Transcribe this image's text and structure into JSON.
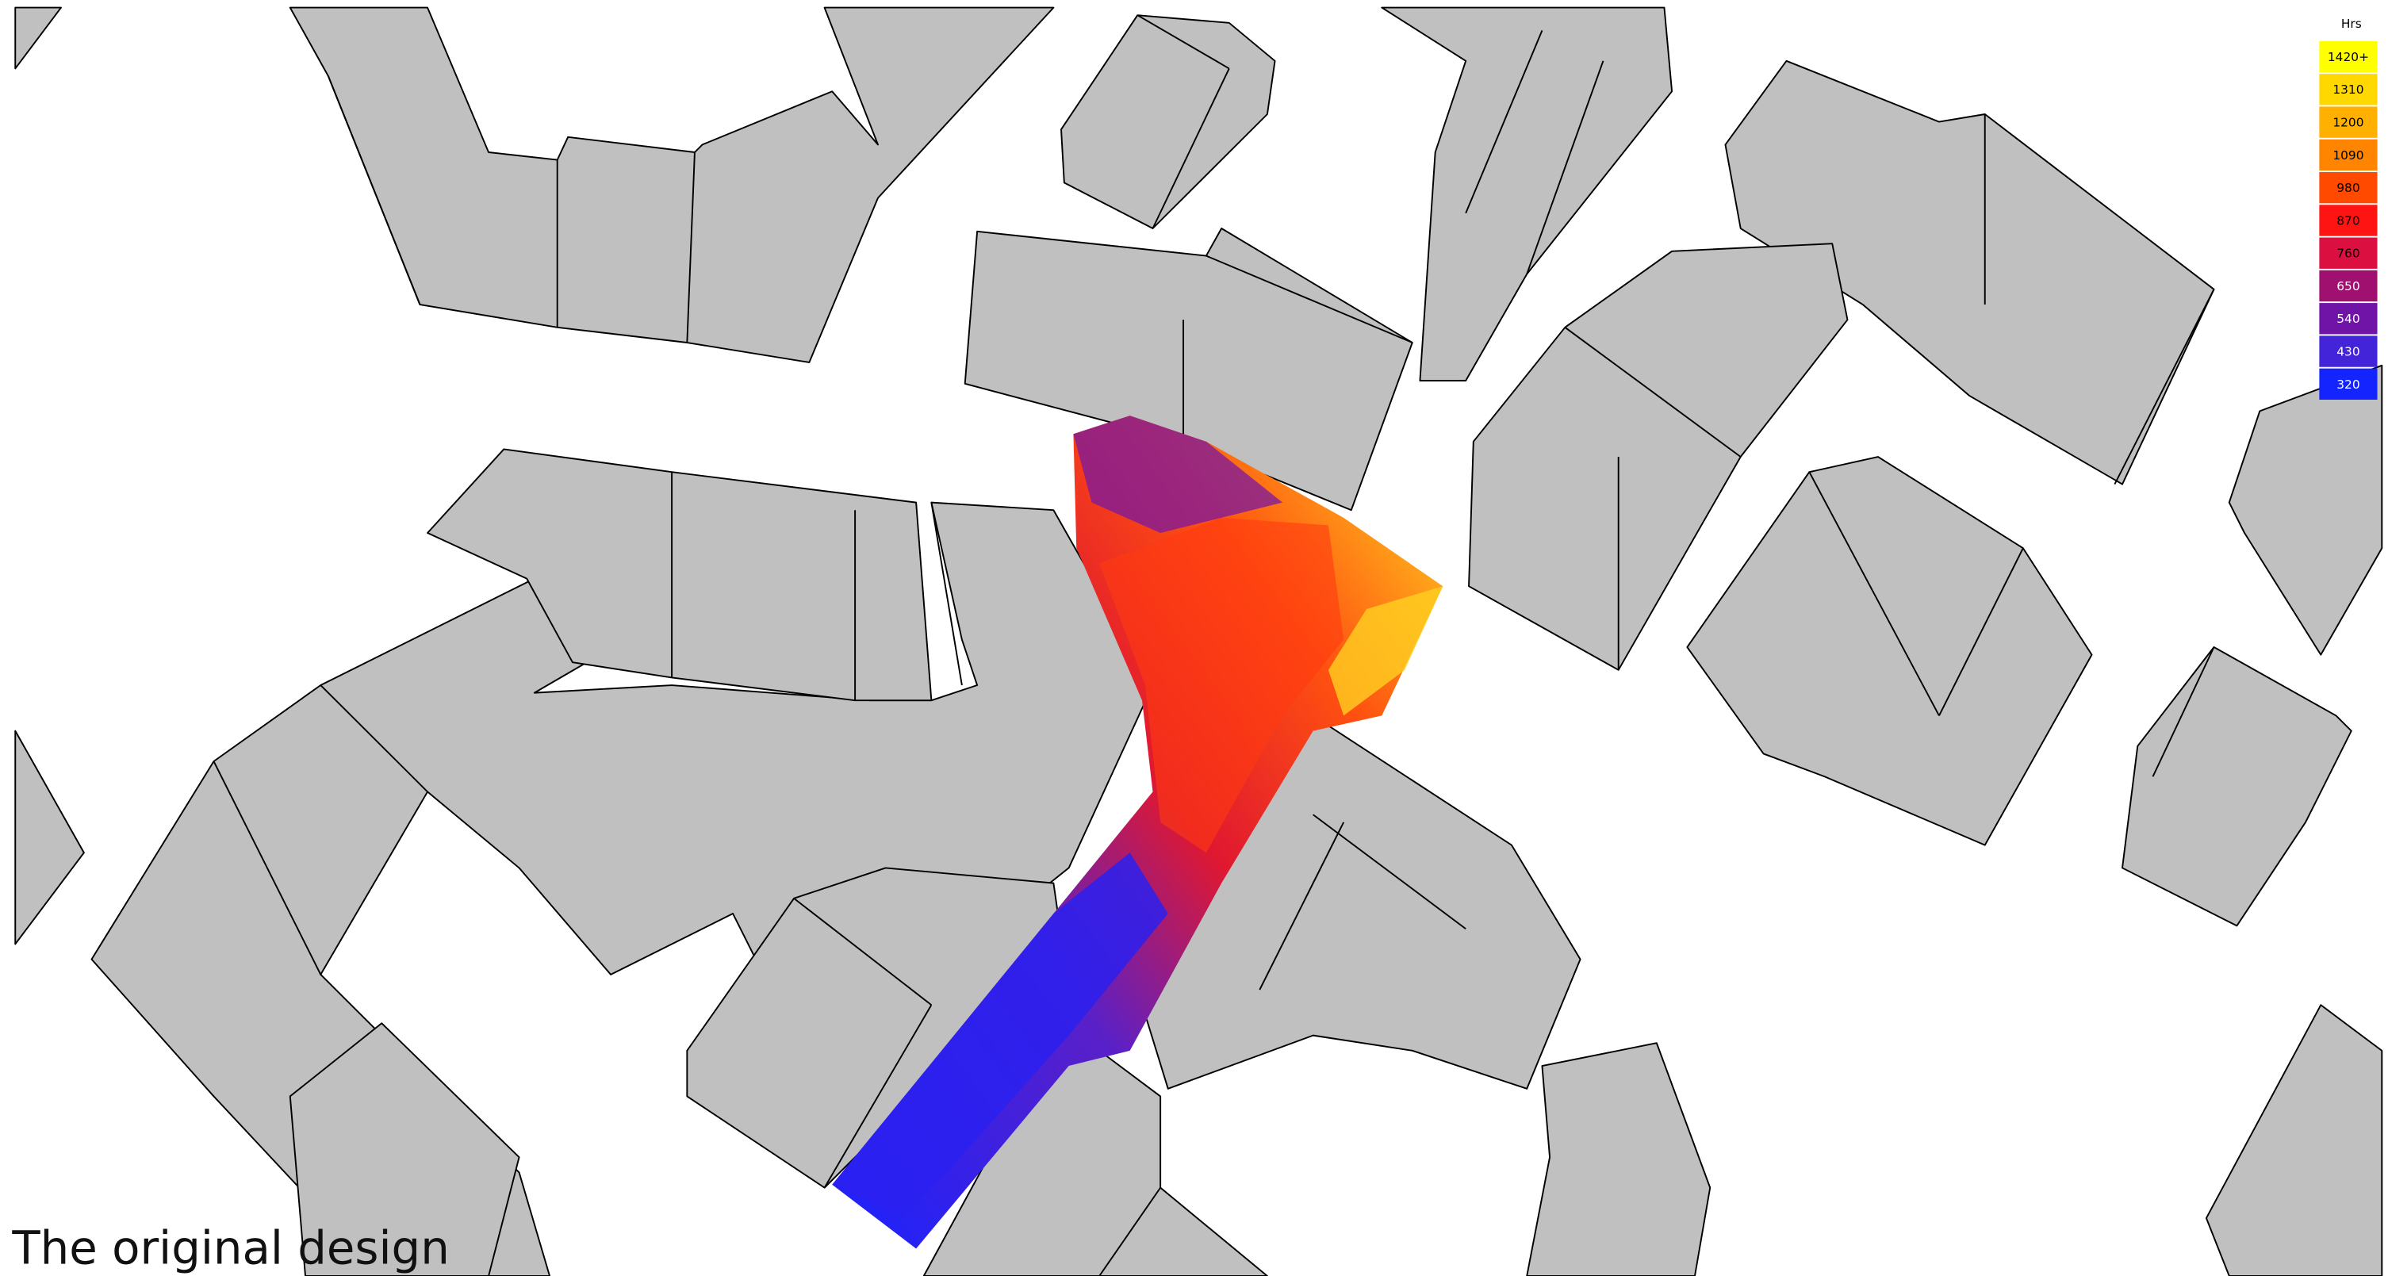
{
  "legend": {
    "title": "Hrs",
    "items": [
      {
        "label": "1420+",
        "color": "#ffff00"
      },
      {
        "label": "1310",
        "color": "#ffd800"
      },
      {
        "label": "1200",
        "color": "#ffb000"
      },
      {
        "label": "1090",
        "color": "#ff8400"
      },
      {
        "label": "980",
        "color": "#ff4a00"
      },
      {
        "label": "870",
        "color": "#ff1414"
      },
      {
        "label": "760",
        "color": "#dc1040"
      },
      {
        "label": "650",
        "color": "#a0106e"
      },
      {
        "label": "540",
        "color": "#7014a8"
      },
      {
        "label": "430",
        "color": "#4424d8"
      },
      {
        "label": "320",
        "color": "#1424ff"
      }
    ]
  },
  "caption": "The original design"
}
